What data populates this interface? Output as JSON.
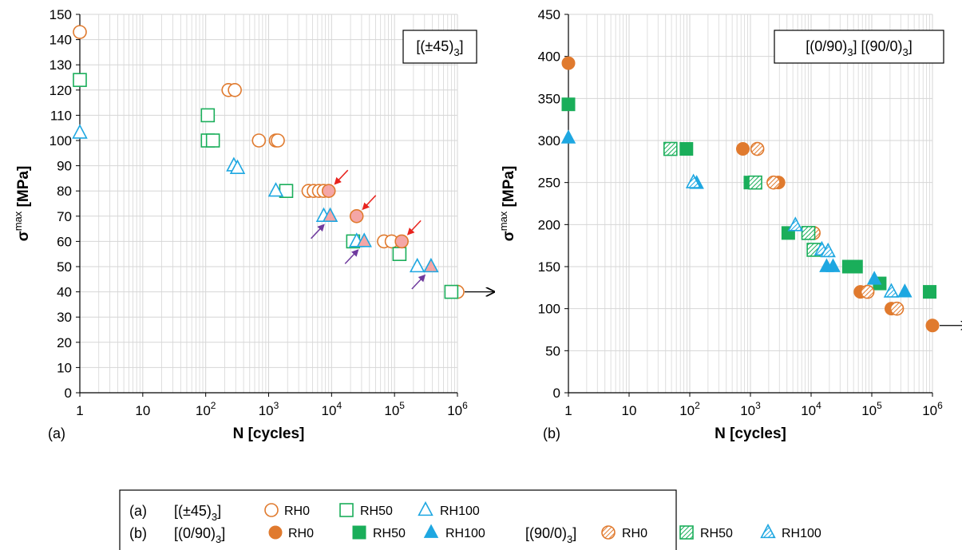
{
  "chart_data": [
    {
      "type": "scatter",
      "panel_label": "(a)",
      "xlabel": "N [cycles]",
      "ylabel_main": "σ",
      "ylabel_sup": "max",
      "ylabel_unit": " [MPa]",
      "x_scale": "log",
      "xlim": [
        1,
        1000000
      ],
      "ylim": [
        0,
        150
      ],
      "y_ticks": [
        0,
        10,
        20,
        30,
        40,
        50,
        60,
        70,
        80,
        90,
        100,
        110,
        120,
        130,
        140,
        150
      ],
      "x_tick_labels": [
        {
          "value": 1,
          "base": "1",
          "exp": ""
        },
        {
          "value": 10,
          "base": "10",
          "exp": ""
        },
        {
          "value": 100,
          "base": "10",
          "exp": "2"
        },
        {
          "value": 1000,
          "base": "10",
          "exp": "3"
        },
        {
          "value": 10000,
          "base": "10",
          "exp": "4"
        },
        {
          "value": 100000,
          "base": "10",
          "exp": "5"
        },
        {
          "value": 1000000,
          "base": "10",
          "exp": "6"
        }
      ],
      "grid": true,
      "box_label_prefix": "[(±45)",
      "box_label_sub": "3",
      "box_label_suffix": "]",
      "series": [
        {
          "name": "RH0",
          "marker": "circle",
          "fill": "none",
          "color": "#E07A2E",
          "points": [
            [
              1,
              143
            ],
            [
              230,
              120
            ],
            [
              290,
              120
            ],
            [
              700,
              100
            ],
            [
              1300,
              100
            ],
            [
              1400,
              100
            ],
            [
              4300,
              80
            ],
            [
              5200,
              80
            ],
            [
              6300,
              80
            ],
            [
              7500,
              80
            ],
            [
              68000,
              60
            ],
            [
              90000,
              60
            ],
            [
              1000000,
              40
            ]
          ]
        },
        {
          "name": "RH50",
          "marker": "square",
          "fill": "none",
          "color": "#1AAE5A",
          "points": [
            [
              1,
              124
            ],
            [
              108,
              110
            ],
            [
              108,
              100
            ],
            [
              130,
              100
            ],
            [
              1900,
              80
            ],
            [
              22000,
              60
            ],
            [
              120000,
              55
            ],
            [
              800000,
              40
            ]
          ]
        },
        {
          "name": "RH100",
          "marker": "triangle",
          "fill": "none",
          "color": "#1EA7E1",
          "points": [
            [
              1,
              103
            ],
            [
              280,
              90
            ],
            [
              320,
              89
            ],
            [
              1300,
              80
            ],
            [
              7500,
              70
            ],
            [
              25000,
              60
            ],
            [
              230000,
              50
            ]
          ]
        },
        {
          "name": "RH0",
          "marker": "circle",
          "fill": "pink",
          "color": "#E07A2E",
          "points": [
            [
              9000,
              80
            ],
            [
              25000,
              70
            ],
            [
              130000,
              60
            ]
          ]
        },
        {
          "name": "RH100",
          "marker": "triangle",
          "fill": "pink",
          "color": "#1EA7E1",
          "points": [
            [
              9500,
              70
            ],
            [
              33000,
              60
            ],
            [
              380000,
              50
            ]
          ]
        }
      ],
      "red_arrows_at": [
        [
          9000,
          80
        ],
        [
          25000,
          70
        ],
        [
          130000,
          60
        ]
      ],
      "purple_arrows_at": [
        [
          9500,
          70
        ],
        [
          33000,
          60
        ],
        [
          380000,
          50
        ]
      ],
      "runout_at": [
        1000000,
        40
      ]
    },
    {
      "type": "scatter",
      "panel_label": "(b)",
      "xlabel": "N [cycles]",
      "ylabel_main": "σ",
      "ylabel_sup": "max",
      "ylabel_unit": " [MPa]",
      "x_scale": "log",
      "xlim": [
        1,
        1000000
      ],
      "ylim": [
        0,
        450
      ],
      "y_ticks": [
        0,
        50,
        100,
        150,
        200,
        250,
        300,
        350,
        400,
        450
      ],
      "x_tick_labels": [
        {
          "value": 1,
          "base": "1",
          "exp": ""
        },
        {
          "value": 10,
          "base": "10",
          "exp": ""
        },
        {
          "value": 100,
          "base": "10",
          "exp": "2"
        },
        {
          "value": 1000,
          "base": "10",
          "exp": "3"
        },
        {
          "value": 10000,
          "base": "10",
          "exp": "4"
        },
        {
          "value": 100000,
          "base": "10",
          "exp": "5"
        },
        {
          "value": 1000000,
          "base": "10",
          "exp": "6"
        }
      ],
      "grid": true,
      "box_label_prefix": "[(0/90)",
      "box_label_sub": "3",
      "box_label_mid": "] [(90/0)",
      "box_label_sub2": "3",
      "box_label_suffix": "]",
      "series": [
        {
          "name": "RH0",
          "marker": "circle",
          "fill": "solid",
          "color": "#E07A2E",
          "points": [
            [
              1,
              392
            ],
            [
              750,
              290
            ],
            [
              2900,
              250
            ],
            [
              65000,
              120
            ],
            [
              210000,
              100
            ],
            [
              1000000,
              80
            ]
          ]
        },
        {
          "name": "RH50",
          "marker": "square",
          "fill": "solid",
          "color": "#1AAE5A",
          "points": [
            [
              1,
              343
            ],
            [
              88,
              290
            ],
            [
              1000,
              250
            ],
            [
              4200,
              190
            ],
            [
              42000,
              150
            ],
            [
              55000,
              150
            ],
            [
              135000,
              130
            ],
            [
              900000,
              120
            ]
          ]
        },
        {
          "name": "RH100",
          "marker": "triangle",
          "fill": "solid",
          "color": "#1EA7E1",
          "points": [
            [
              1,
              303
            ],
            [
              130,
              249
            ],
            [
              18000,
              150
            ],
            [
              23000,
              150
            ],
            [
              110000,
              135
            ],
            [
              350000,
              120
            ]
          ]
        },
        {
          "name": "RH0",
          "marker": "circle",
          "fill": "hatch",
          "color": "#E07A2E",
          "points": [
            [
              1300,
              290
            ],
            [
              2400,
              250
            ],
            [
              11000,
              190
            ],
            [
              85000,
              120
            ],
            [
              260000,
              100
            ]
          ]
        },
        {
          "name": "RH50",
          "marker": "square",
          "fill": "hatch",
          "color": "#1AAE5A",
          "points": [
            [
              48,
              290
            ],
            [
              1200,
              250
            ],
            [
              9000,
              190
            ],
            [
              11000,
              170
            ]
          ]
        },
        {
          "name": "RH100",
          "marker": "triangle",
          "fill": "hatch",
          "color": "#1EA7E1",
          "points": [
            [
              115,
              250
            ],
            [
              5500,
              199
            ],
            [
              15000,
              170
            ],
            [
              19000,
              168
            ],
            [
              210000,
              120
            ]
          ]
        }
      ],
      "runout_at": [
        1000000,
        80
      ]
    }
  ],
  "legend": {
    "row_a_label": "(a)",
    "row_a_lam_prefix": "[(±45)",
    "row_a_lam_sub": "3",
    "row_a_lam_suffix": "]",
    "row_a_items": [
      "RH0",
      "RH50",
      "RH100"
    ],
    "row_b_label": "(b)",
    "row_b_lam_prefix": "[(0/90)",
    "row_b_lam_sub": "3",
    "row_b_lam_suffix": "]",
    "row_b_items": [
      "RH0",
      "RH50",
      "RH100"
    ],
    "row_b2_lam_prefix": "[(90/0)",
    "row_b2_lam_sub": "3",
    "row_b2_lam_suffix": "]",
    "row_b2_items": [
      "RH0",
      "RH50",
      "RH100"
    ]
  },
  "colors": {
    "orange": "#E07A2E",
    "green": "#1AAE5A",
    "blue": "#1EA7E1",
    "pink_fill": "#F4A6A6",
    "arrow_red": "#E8231E",
    "arrow_purple": "#6F3A9E",
    "grid": "#D6D6D6"
  }
}
